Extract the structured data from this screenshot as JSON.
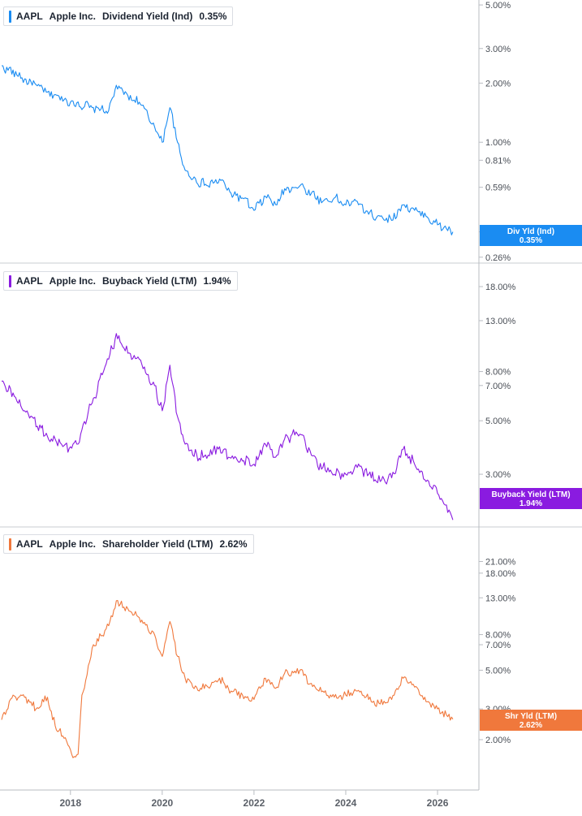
{
  "chart_data": [
    {
      "type": "line",
      "panel": "dividend",
      "legend": {
        "ticker": "AAPL",
        "company": "Apple Inc.",
        "metric": "Dividend Yield (Ind)",
        "value": "0.35%"
      },
      "flag": {
        "label": "Div Yld (Ind)",
        "value": "0.35%"
      },
      "color": "#1a8cf2",
      "yscale": "log",
      "ylim": [
        0.245,
        5.1
      ],
      "y_ticks": [
        {
          "value": 5.0,
          "label": "5.00%"
        },
        {
          "value": 3.0,
          "label": "3.00%"
        },
        {
          "value": 2.0,
          "label": "2.00%"
        },
        {
          "value": 1.0,
          "label": "1.00%"
        },
        {
          "value": 0.81,
          "label": "0.81%"
        },
        {
          "value": 0.59,
          "label": "0.59%"
        },
        {
          "value": 0.35,
          "label": "0.35%"
        },
        {
          "value": 0.26,
          "label": "0.26%"
        }
      ],
      "series": [
        {
          "x": [
            "2016-07",
            "2017-01",
            "2017-07",
            "2018-01",
            "2018-07",
            "2018-11",
            "2019-01",
            "2019-03",
            "2019-07",
            "2019-11",
            "2020-01",
            "2020-03",
            "2020-05",
            "2020-07",
            "2020-09",
            "2021-01",
            "2021-04",
            "2021-07",
            "2021-10",
            "2022-01",
            "2022-04",
            "2022-07",
            "2022-09",
            "2023-01",
            "2023-04",
            "2023-07",
            "2023-10",
            "2024-01",
            "2024-04",
            "2024-07",
            "2024-10",
            "2025-01",
            "2025-04",
            "2025-07",
            "2025-10",
            "2026-01",
            "2026-05"
          ],
          "y": [
            2.45,
            2.1,
            1.8,
            1.6,
            1.5,
            1.45,
            1.95,
            1.75,
            1.6,
            1.2,
            1.0,
            1.5,
            1.0,
            0.72,
            0.65,
            0.6,
            0.65,
            0.55,
            0.52,
            0.45,
            0.53,
            0.48,
            0.58,
            0.6,
            0.55,
            0.5,
            0.52,
            0.48,
            0.5,
            0.43,
            0.42,
            0.4,
            0.48,
            0.45,
            0.42,
            0.38,
            0.35
          ]
        }
      ]
    },
    {
      "type": "line",
      "panel": "buyback",
      "legend": {
        "ticker": "AAPL",
        "company": "Apple Inc.",
        "metric": "Buyback Yield (LTM)",
        "value": "1.94%"
      },
      "flag": {
        "label": "Buyback Yield (LTM)",
        "value": "1.94%"
      },
      "color": "#8a1be0",
      "yscale": "log",
      "ylim": [
        1.9,
        19
      ],
      "y_ticks": [
        {
          "value": 18.0,
          "label": "18.00%"
        },
        {
          "value": 13.0,
          "label": "13.00%"
        },
        {
          "value": 8.0,
          "label": "8.00%"
        },
        {
          "value": 7.0,
          "label": "7.00%"
        },
        {
          "value": 5.0,
          "label": "5.00%"
        },
        {
          "value": 3.0,
          "label": "3.00%"
        }
      ],
      "series": [
        {
          "x": [
            "2016-07",
            "2017-01",
            "2017-07",
            "2018-01",
            "2018-03",
            "2018-07",
            "2018-11",
            "2019-01",
            "2019-03",
            "2019-07",
            "2019-11",
            "2020-01",
            "2020-03",
            "2020-05",
            "2020-07",
            "2020-09",
            "2021-01",
            "2021-04",
            "2021-07",
            "2021-10",
            "2022-01",
            "2022-04",
            "2022-07",
            "2022-09",
            "2023-01",
            "2023-04",
            "2023-07",
            "2023-10",
            "2024-01",
            "2024-04",
            "2024-07",
            "2024-10",
            "2025-01",
            "2025-04",
            "2025-07",
            "2025-10",
            "2026-01",
            "2026-05"
          ],
          "y": [
            7.3,
            5.5,
            4.3,
            3.9,
            4.0,
            6.2,
            9.0,
            11.5,
            10.0,
            9.0,
            7.0,
            5.5,
            8.5,
            5.2,
            4.0,
            3.6,
            3.6,
            3.9,
            3.5,
            3.4,
            3.3,
            4.0,
            3.6,
            4.2,
            4.4,
            3.6,
            3.2,
            3.0,
            3.0,
            3.2,
            3.0,
            2.8,
            2.9,
            3.8,
            3.3,
            2.8,
            2.5,
            1.94
          ]
        }
      ]
    },
    {
      "type": "line",
      "panel": "shareholder",
      "legend": {
        "ticker": "AAPL",
        "company": "Apple Inc.",
        "metric": "Shareholder Yield (LTM)",
        "value": "2.62%"
      },
      "flag": {
        "label": "Shr Yld (LTM)",
        "value": "2.62%"
      },
      "color": "#f0783c",
      "yscale": "log",
      "ylim": [
        1.45,
        23
      ],
      "y_ticks": [
        {
          "value": 21.0,
          "label": "21.00%"
        },
        {
          "value": 18.0,
          "label": "18.00%"
        },
        {
          "value": 13.0,
          "label": "13.00%"
        },
        {
          "value": 8.0,
          "label": "8.00%"
        },
        {
          "value": 7.0,
          "label": "7.00%"
        },
        {
          "value": 5.0,
          "label": "5.00%"
        },
        {
          "value": 3.0,
          "label": "3.00%"
        },
        {
          "value": 2.0,
          "label": "2.00%"
        }
      ],
      "series": [
        {
          "x": [
            "2016-07",
            "2016-10",
            "2017-01",
            "2017-04",
            "2017-07",
            "2017-09",
            "2017-11",
            "2018-01",
            "2018-02",
            "2018-03",
            "2018-04",
            "2018-07",
            "2018-11",
            "2019-01",
            "2019-03",
            "2019-07",
            "2019-11",
            "2020-01",
            "2020-03",
            "2020-05",
            "2020-07",
            "2020-09",
            "2021-01",
            "2021-04",
            "2021-07",
            "2021-10",
            "2022-01",
            "2022-04",
            "2022-07",
            "2022-09",
            "2023-01",
            "2023-04",
            "2023-07",
            "2023-10",
            "2024-01",
            "2024-04",
            "2024-07",
            "2024-10",
            "2025-01",
            "2025-04",
            "2025-07",
            "2025-10",
            "2026-01",
            "2026-05"
          ],
          "y": [
            2.6,
            3.6,
            3.5,
            3.0,
            3.5,
            2.4,
            2.1,
            1.75,
            1.6,
            1.65,
            3.6,
            7.0,
            9.0,
            12.5,
            11.5,
            10.0,
            8.0,
            6.0,
            9.5,
            6.0,
            4.5,
            4.0,
            4.0,
            4.5,
            3.8,
            3.6,
            3.4,
            4.5,
            4.0,
            4.8,
            5.0,
            4.2,
            3.8,
            3.5,
            3.6,
            3.8,
            3.4,
            3.2,
            3.4,
            4.5,
            4.0,
            3.3,
            3.0,
            2.62
          ]
        }
      ]
    }
  ],
  "x_axis": {
    "ticks": [
      {
        "value": "2018-01",
        "label": "2018"
      },
      {
        "value": "2020-01",
        "label": "2020"
      },
      {
        "value": "2022-01",
        "label": "2022"
      },
      {
        "value": "2024-01",
        "label": "2024"
      },
      {
        "value": "2026-01",
        "label": "2026"
      }
    ],
    "range": [
      "2016-07",
      "2026-08"
    ]
  },
  "colors": {
    "divider": "#c9ccd1",
    "axis_line": "#b9bcc2",
    "tick_text": "#4a4f57"
  }
}
